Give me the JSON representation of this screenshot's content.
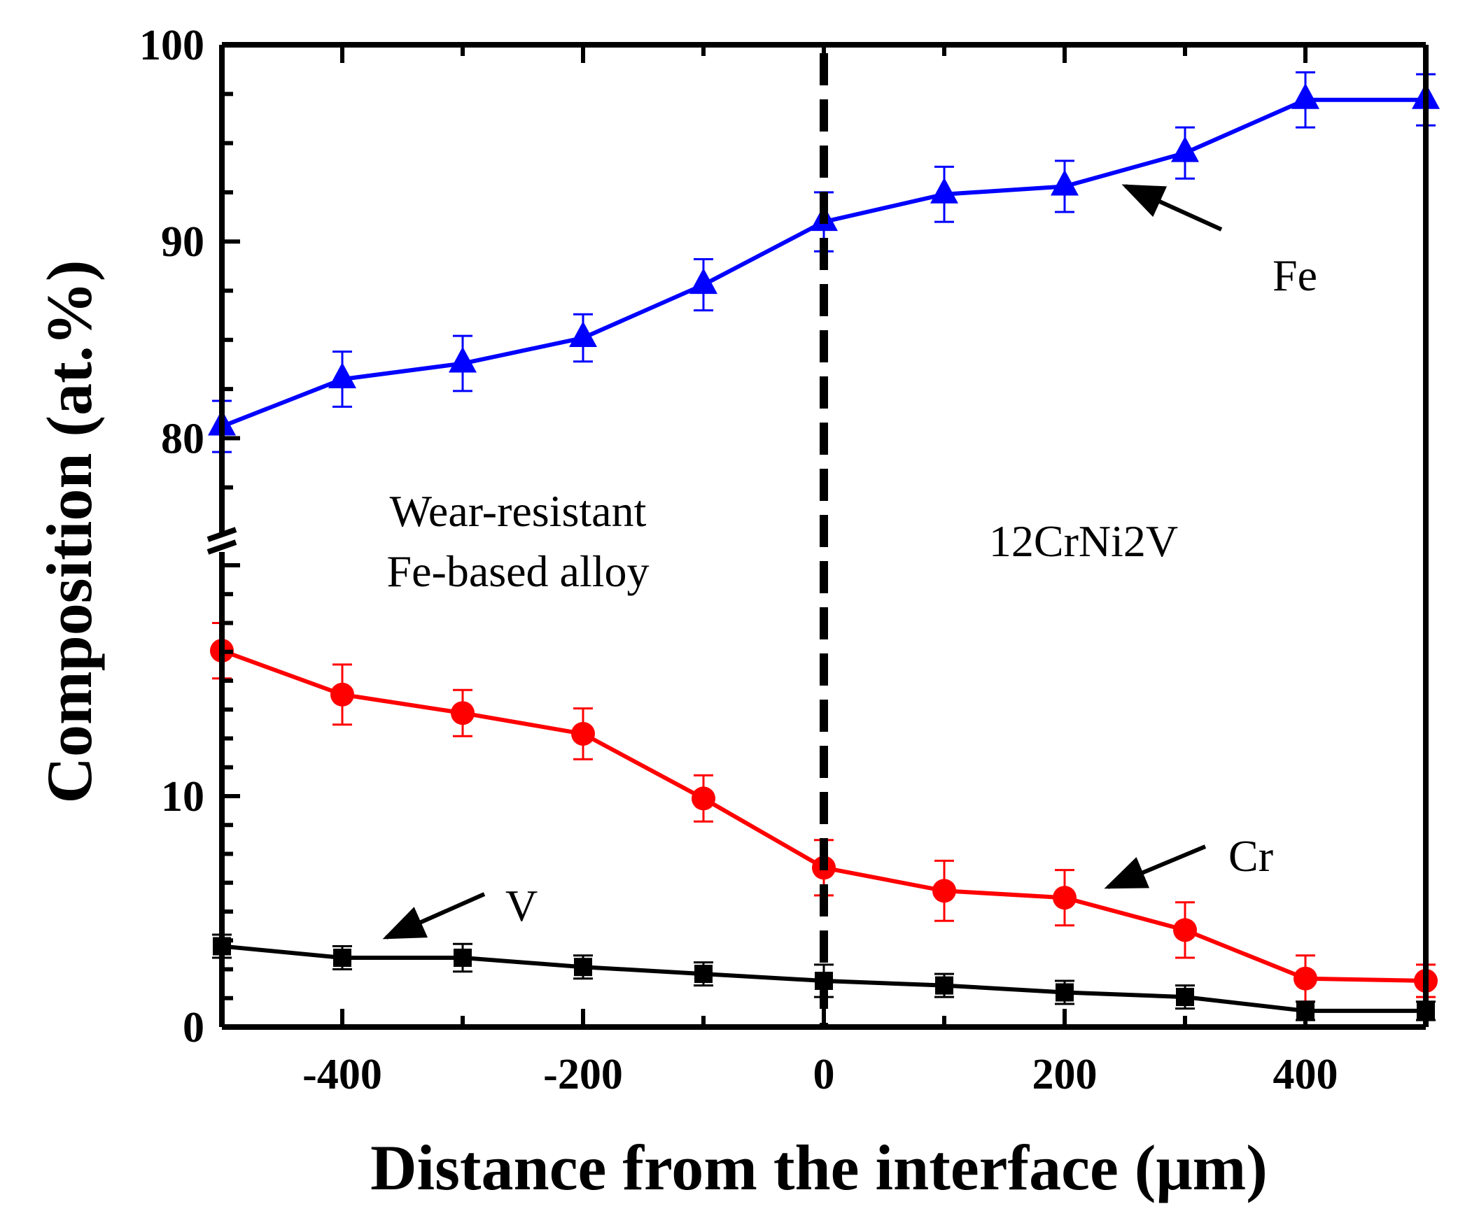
{
  "chart_data": {
    "type": "line",
    "title": "",
    "xlabel": "Distance from the interface (μm)",
    "ylabel": "Composition (at.%)",
    "x": [
      -500,
      -400,
      -300,
      -200,
      -100,
      0,
      100,
      200,
      300,
      400,
      500
    ],
    "xlim": [
      -500,
      500
    ],
    "xticks": [
      -400,
      -200,
      0,
      200,
      400
    ],
    "xtick_labels": [
      "-400",
      "-200",
      "0",
      "200",
      "400"
    ],
    "y_axis_break": true,
    "ylim_lower": [
      0,
      20
    ],
    "ylim_upper": [
      75,
      100
    ],
    "yticks": [
      0,
      10,
      80,
      90,
      100
    ],
    "ytick_labels": [
      "0",
      "10",
      "80",
      "90",
      "100"
    ],
    "interface_line_x": 0,
    "series": [
      {
        "name": "Fe",
        "color": "#0000ff",
        "marker": "triangle",
        "values": [
          80.6,
          83.0,
          83.8,
          85.1,
          87.8,
          91.0,
          92.4,
          92.8,
          94.5,
          97.2,
          97.2
        ],
        "errors": [
          1.3,
          1.4,
          1.4,
          1.2,
          1.3,
          1.5,
          1.4,
          1.3,
          1.3,
          1.4,
          1.3
        ]
      },
      {
        "name": "Cr",
        "color": "#ff0000",
        "marker": "circle",
        "values": [
          16.3,
          14.4,
          13.6,
          12.7,
          9.9,
          6.9,
          5.9,
          5.6,
          4.2,
          2.1,
          2.0
        ],
        "errors": [
          1.2,
          1.3,
          1.0,
          1.1,
          1.0,
          1.2,
          1.3,
          1.2,
          1.2,
          1.0,
          0.7
        ]
      },
      {
        "name": "V",
        "color": "#000000",
        "marker": "square",
        "values": [
          3.5,
          3.0,
          3.0,
          2.6,
          2.3,
          2.0,
          1.8,
          1.5,
          1.3,
          0.7,
          0.7
        ],
        "errors": [
          0.5,
          0.5,
          0.6,
          0.5,
          0.5,
          0.7,
          0.5,
          0.5,
          0.5,
          0.4,
          0.4
        ]
      }
    ],
    "annotations": {
      "left_region": [
        "Wear-resistant",
        "Fe-based alloy"
      ],
      "right_region": "12CrNi2V",
      "fe_label": "Fe",
      "cr_label": "Cr",
      "v_label": "V"
    }
  }
}
